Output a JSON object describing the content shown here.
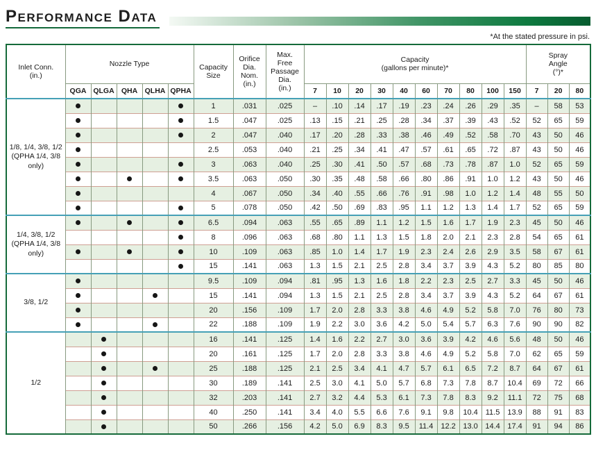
{
  "page": {
    "title": "Performance Data",
    "footnote": "*At the stated pressure in psi."
  },
  "table": {
    "header": {
      "inlet_conn": "Inlet Conn.\n(in.)",
      "nozzle_type": "Nozzle Type",
      "nozzle_columns": [
        "QGA",
        "QLGA",
        "QHA",
        "QLHA",
        "QPHA"
      ],
      "capacity_size": "Capacity\nSize",
      "orifice_dia": "Orifice\nDia.\nNom.\n(in.)",
      "max_free_passage": "Max.\nFree\nPassage\nDia.\n(in.)",
      "capacity_gpm": "Capacity\n(gallons per minute)*",
      "pressure_columns": [
        "7",
        "10",
        "20",
        "30",
        "40",
        "60",
        "70",
        "80",
        "100",
        "150"
      ],
      "spray_angle": "Spray\nAngle\n(°)*",
      "spray_angle_columns": [
        "7",
        "20",
        "80"
      ]
    },
    "groups": [
      {
        "inlet": "1/8, 1/4, 3/8, 1/2\n(QPHA 1/4, 3/8\nonly)",
        "rows": [
          {
            "nozzles": [
              1,
              0,
              0,
              0,
              1
            ],
            "size": "1",
            "orifice": ".031",
            "max_free": ".025",
            "capacity": [
              "–",
              ".10",
              ".14",
              ".17",
              ".19",
              ".23",
              ".24",
              ".26",
              ".29",
              ".35"
            ],
            "spray": [
              "–",
              "58",
              "53"
            ]
          },
          {
            "nozzles": [
              1,
              0,
              0,
              0,
              1
            ],
            "size": "1.5",
            "orifice": ".047",
            "max_free": ".025",
            "capacity": [
              ".13",
              ".15",
              ".21",
              ".25",
              ".28",
              ".34",
              ".37",
              ".39",
              ".43",
              ".52"
            ],
            "spray": [
              "52",
              "65",
              "59"
            ]
          },
          {
            "nozzles": [
              1,
              0,
              0,
              0,
              1
            ],
            "size": "2",
            "orifice": ".047",
            "max_free": ".040",
            "capacity": [
              ".17",
              ".20",
              ".28",
              ".33",
              ".38",
              ".46",
              ".49",
              ".52",
              ".58",
              ".70"
            ],
            "spray": [
              "43",
              "50",
              "46"
            ]
          },
          {
            "nozzles": [
              1,
              0,
              0,
              0,
              0
            ],
            "size": "2.5",
            "orifice": ".053",
            "max_free": ".040",
            "capacity": [
              ".21",
              ".25",
              ".34",
              ".41",
              ".47",
              ".57",
              ".61",
              ".65",
              ".72",
              ".87"
            ],
            "spray": [
              "43",
              "50",
              "46"
            ]
          },
          {
            "nozzles": [
              1,
              0,
              0,
              0,
              1
            ],
            "size": "3",
            "orifice": ".063",
            "max_free": ".040",
            "capacity": [
              ".25",
              ".30",
              ".41",
              ".50",
              ".57",
              ".68",
              ".73",
              ".78",
              ".87",
              "1.0"
            ],
            "spray": [
              "52",
              "65",
              "59"
            ]
          },
          {
            "nozzles": [
              1,
              0,
              1,
              0,
              1
            ],
            "size": "3.5",
            "orifice": ".063",
            "max_free": ".050",
            "capacity": [
              ".30",
              ".35",
              ".48",
              ".58",
              ".66",
              ".80",
              ".86",
              ".91",
              "1.0",
              "1.2"
            ],
            "spray": [
              "43",
              "50",
              "46"
            ]
          },
          {
            "nozzles": [
              1,
              0,
              0,
              0,
              0
            ],
            "size": "4",
            "orifice": ".067",
            "max_free": ".050",
            "capacity": [
              ".34",
              ".40",
              ".55",
              ".66",
              ".76",
              ".91",
              ".98",
              "1.0",
              "1.2",
              "1.4"
            ],
            "spray": [
              "48",
              "55",
              "50"
            ]
          },
          {
            "nozzles": [
              1,
              0,
              0,
              0,
              1
            ],
            "size": "5",
            "orifice": ".078",
            "max_free": ".050",
            "capacity": [
              ".42",
              ".50",
              ".69",
              ".83",
              ".95",
              "1.1",
              "1.2",
              "1.3",
              "1.4",
              "1.7"
            ],
            "spray": [
              "52",
              "65",
              "59"
            ]
          }
        ]
      },
      {
        "inlet": "1/4, 3/8, 1/2\n(QPHA 1/4, 3/8\nonly)",
        "rows": [
          {
            "nozzles": [
              1,
              0,
              1,
              0,
              1
            ],
            "size": "6.5",
            "orifice": ".094",
            "max_free": ".063",
            "capacity": [
              ".55",
              ".65",
              ".89",
              "1.1",
              "1.2",
              "1.5",
              "1.6",
              "1.7",
              "1.9",
              "2.3"
            ],
            "spray": [
              "45",
              "50",
              "46"
            ]
          },
          {
            "nozzles": [
              0,
              0,
              0,
              0,
              1
            ],
            "size": "8",
            "orifice": ".096",
            "max_free": ".063",
            "capacity": [
              ".68",
              ".80",
              "1.1",
              "1.3",
              "1.5",
              "1.8",
              "2.0",
              "2.1",
              "2.3",
              "2.8"
            ],
            "spray": [
              "54",
              "65",
              "61"
            ]
          },
          {
            "nozzles": [
              1,
              0,
              1,
              0,
              1
            ],
            "size": "10",
            "orifice": ".109",
            "max_free": ".063",
            "capacity": [
              ".85",
              "1.0",
              "1.4",
              "1.7",
              "1.9",
              "2.3",
              "2.4",
              "2.6",
              "2.9",
              "3.5"
            ],
            "spray": [
              "58",
              "67",
              "61"
            ]
          },
          {
            "nozzles": [
              0,
              0,
              0,
              0,
              1
            ],
            "size": "15",
            "orifice": ".141",
            "max_free": ".063",
            "capacity": [
              "1.3",
              "1.5",
              "2.1",
              "2.5",
              "2.8",
              "3.4",
              "3.7",
              "3.9",
              "4.3",
              "5.2"
            ],
            "spray": [
              "80",
              "85",
              "80"
            ]
          }
        ]
      },
      {
        "inlet": "3/8, 1/2",
        "rows": [
          {
            "nozzles": [
              1,
              0,
              0,
              0,
              0
            ],
            "size": "9.5",
            "orifice": ".109",
            "max_free": ".094",
            "capacity": [
              ".81",
              ".95",
              "1.3",
              "1.6",
              "1.8",
              "2.2",
              "2.3",
              "2.5",
              "2.7",
              "3.3"
            ],
            "spray": [
              "45",
              "50",
              "46"
            ]
          },
          {
            "nozzles": [
              1,
              0,
              0,
              1,
              0
            ],
            "size": "15",
            "orifice": ".141",
            "max_free": ".094",
            "capacity": [
              "1.3",
              "1.5",
              "2.1",
              "2.5",
              "2.8",
              "3.4",
              "3.7",
              "3.9",
              "4.3",
              "5.2"
            ],
            "spray": [
              "64",
              "67",
              "61"
            ]
          },
          {
            "nozzles": [
              1,
              0,
              0,
              0,
              0
            ],
            "size": "20",
            "orifice": ".156",
            "max_free": ".109",
            "capacity": [
              "1.7",
              "2.0",
              "2.8",
              "3.3",
              "3.8",
              "4.6",
              "4.9",
              "5.2",
              "5.8",
              "7.0"
            ],
            "spray": [
              "76",
              "80",
              "73"
            ]
          },
          {
            "nozzles": [
              1,
              0,
              0,
              1,
              0
            ],
            "size": "22",
            "orifice": ".188",
            "max_free": ".109",
            "capacity": [
              "1.9",
              "2.2",
              "3.0",
              "3.6",
              "4.2",
              "5.0",
              "5.4",
              "5.7",
              "6.3",
              "7.6"
            ],
            "spray": [
              "90",
              "90",
              "82"
            ]
          }
        ]
      },
      {
        "inlet": "1/2",
        "rows": [
          {
            "nozzles": [
              0,
              1,
              0,
              0,
              0
            ],
            "size": "16",
            "orifice": ".141",
            "max_free": ".125",
            "capacity": [
              "1.4",
              "1.6",
              "2.2",
              "2.7",
              "3.0",
              "3.6",
              "3.9",
              "4.2",
              "4.6",
              "5.6"
            ],
            "spray": [
              "48",
              "50",
              "46"
            ]
          },
          {
            "nozzles": [
              0,
              1,
              0,
              0,
              0
            ],
            "size": "20",
            "orifice": ".161",
            "max_free": ".125",
            "capacity": [
              "1.7",
              "2.0",
              "2.8",
              "3.3",
              "3.8",
              "4.6",
              "4.9",
              "5.2",
              "5.8",
              "7.0"
            ],
            "spray": [
              "62",
              "65",
              "59"
            ]
          },
          {
            "nozzles": [
              0,
              1,
              0,
              1,
              0
            ],
            "size": "25",
            "orifice": ".188",
            "max_free": ".125",
            "capacity": [
              "2.1",
              "2.5",
              "3.4",
              "4.1",
              "4.7",
              "5.7",
              "6.1",
              "6.5",
              "7.2",
              "8.7"
            ],
            "spray": [
              "64",
              "67",
              "61"
            ]
          },
          {
            "nozzles": [
              0,
              1,
              0,
              0,
              0
            ],
            "size": "30",
            "orifice": ".189",
            "max_free": ".141",
            "capacity": [
              "2.5",
              "3.0",
              "4.1",
              "5.0",
              "5.7",
              "6.8",
              "7.3",
              "7.8",
              "8.7",
              "10.4"
            ],
            "spray": [
              "69",
              "72",
              "66"
            ]
          },
          {
            "nozzles": [
              0,
              1,
              0,
              0,
              0
            ],
            "size": "32",
            "orifice": ".203",
            "max_free": ".141",
            "capacity": [
              "2.7",
              "3.2",
              "4.4",
              "5.3",
              "6.1",
              "7.3",
              "7.8",
              "8.3",
              "9.2",
              "11.1"
            ],
            "spray": [
              "72",
              "75",
              "68"
            ]
          },
          {
            "nozzles": [
              0,
              1,
              0,
              0,
              0
            ],
            "size": "40",
            "orifice": ".250",
            "max_free": ".141",
            "capacity": [
              "3.4",
              "4.0",
              "5.5",
              "6.6",
              "7.6",
              "9.1",
              "9.8",
              "10.4",
              "11.5",
              "13.9"
            ],
            "spray": [
              "88",
              "91",
              "83"
            ]
          },
          {
            "nozzles": [
              0,
              1,
              0,
              0,
              0
            ],
            "size": "50",
            "orifice": ".266",
            "max_free": ".156",
            "capacity": [
              "4.2",
              "5.0",
              "6.9",
              "8.3",
              "9.5",
              "11.4",
              "12.2",
              "13.0",
              "14.4",
              "17.4"
            ],
            "spray": [
              "91",
              "94",
              "86"
            ]
          }
        ]
      }
    ],
    "colors": {
      "accent_green": "#0e7a40",
      "row_alt_green": "#e6f0e2",
      "group_divider_teal": "#45a0b6",
      "row_divider_salmon": "#cf9f93"
    }
  }
}
